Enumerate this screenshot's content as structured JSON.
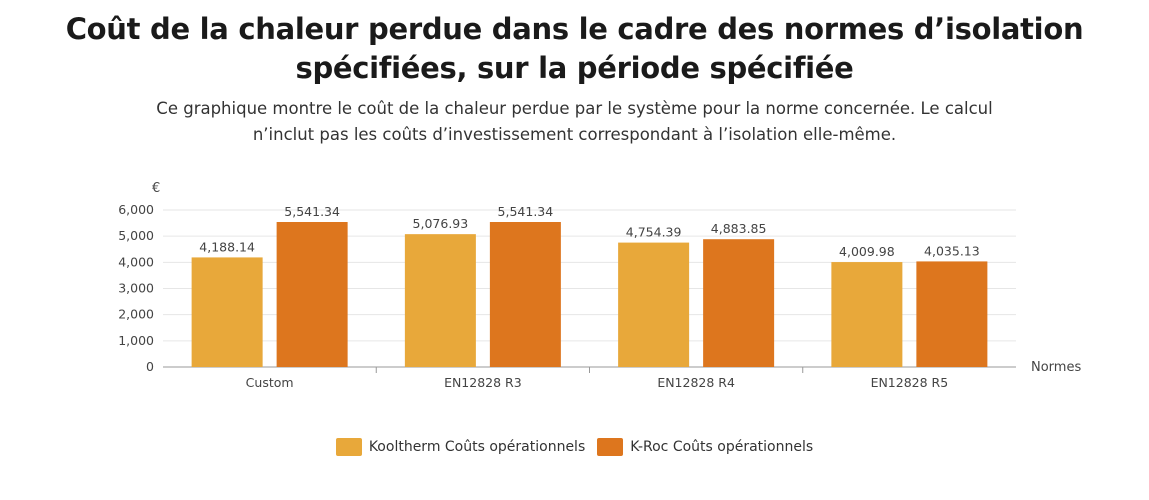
{
  "title_lines": [
    "Coût de la chaleur perdue dans le cadre des normes d’isolation",
    "spécifiées, sur la période spécifiée"
  ],
  "subtitle_lines": [
    "Ce graphique montre le coût de la chaleur perdue par le système pour la norme concernée. Le calcul",
    "n’inclut pas les coûts d’investissement correspondant à l’isolation elle-même."
  ],
  "colors": {
    "kooltherm": "#e8a83a",
    "kroc": "#dd761e",
    "grid": "#e6e6e6",
    "axis": "#999999"
  },
  "chart_data": {
    "type": "bar",
    "title": "Coût de la chaleur perdue dans le cadre des normes d’isolation spécifiées, sur la période spécifiée",
    "ylabel": "€",
    "xlabel": "Normes",
    "ylim": [
      0,
      6000
    ],
    "yticks": [
      0,
      1000,
      2000,
      3000,
      4000,
      5000,
      6000
    ],
    "ytick_labels": [
      "0",
      "1,000",
      "2,000",
      "3,000",
      "4,000",
      "5,000",
      "6,000"
    ],
    "categories": [
      "Custom",
      "EN12828 R3",
      "EN12828 R4",
      "EN12828 R5"
    ],
    "series": [
      {
        "name": "Kooltherm Coûts opérationnels",
        "values": [
          4188.14,
          5076.93,
          4754.39,
          4009.98
        ],
        "labels": [
          "4,188.14",
          "5,076.93",
          "4,754.39",
          "4,009.98"
        ]
      },
      {
        "name": "K-Roc Coûts opérationnels",
        "values": [
          5541.34,
          5541.34,
          4883.85,
          4035.13
        ],
        "labels": [
          "5,541.34",
          "5,541.34",
          "4,883.85",
          "4,035.13"
        ]
      }
    ],
    "grid": true,
    "legend_position": "bottom"
  }
}
